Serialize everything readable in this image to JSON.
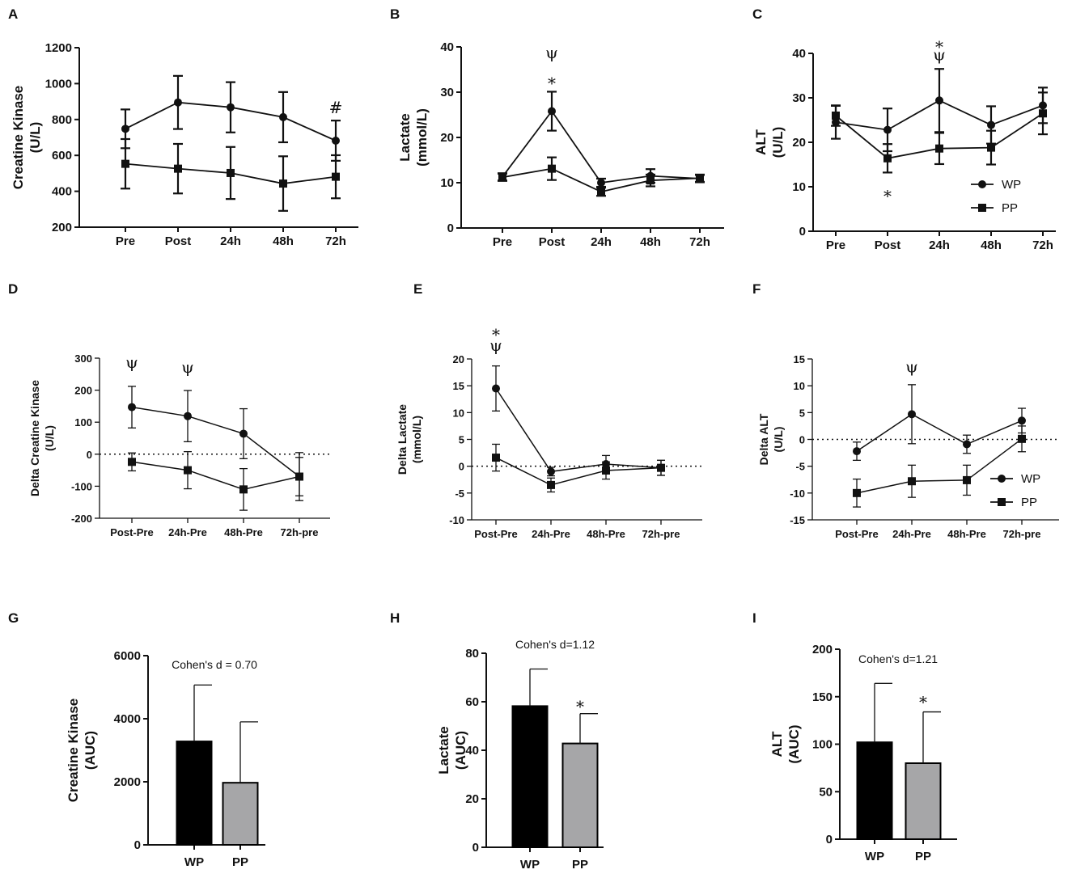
{
  "colors": {
    "wp_bar": "#000000",
    "pp_bar": "#a6a6a8",
    "line": "#111111"
  },
  "chart_data": [
    {
      "id": "A",
      "type": "line",
      "letter": "A",
      "title": "",
      "xlabel": "",
      "ylabel_lines": [
        "Creatine Kinase",
        "(U/L)"
      ],
      "categories": [
        "Pre",
        "Post",
        "24h",
        "48h",
        "72h"
      ],
      "ylim": [
        200,
        1200
      ],
      "yticks": [
        200,
        400,
        600,
        800,
        1000,
        1200
      ],
      "series": [
        {
          "name": "WP",
          "marker": "circle",
          "values": [
            748,
            895,
            868,
            813,
            682
          ],
          "errors": [
            108,
            148,
            140,
            140,
            112
          ]
        },
        {
          "name": "PP",
          "marker": "square",
          "values": [
            553,
            526,
            502,
            443,
            481
          ],
          "errors": [
            138,
            138,
            145,
            152,
            120
          ]
        }
      ],
      "annotations": [
        {
          "text": "#",
          "category": "72h",
          "y": 835
        }
      ]
    },
    {
      "id": "B",
      "type": "line",
      "letter": "B",
      "title": "",
      "xlabel": "",
      "ylabel_lines": [
        "Lactate",
        "(mmol/L)"
      ],
      "categories": [
        "Pre",
        "Post",
        "24h",
        "48h",
        "72h"
      ],
      "ylim": [
        0,
        40
      ],
      "yticks": [
        0,
        10,
        20,
        30,
        40
      ],
      "series": [
        {
          "name": "WP",
          "marker": "circle",
          "values": [
            11.3,
            25.8,
            10.0,
            11.5,
            10.9
          ],
          "errors": [
            0.8,
            4.3,
            0.9,
            1.5,
            0.8
          ]
        },
        {
          "name": "PP",
          "marker": "square",
          "values": [
            11.2,
            13.1,
            8.0,
            10.5,
            11.0
          ],
          "errors": [
            0.8,
            2.5,
            0.9,
            1.3,
            0.8
          ]
        }
      ],
      "annotations": [
        {
          "text": "ψ",
          "category": "Post",
          "y": 37.5
        },
        {
          "text": "*",
          "category": "Post",
          "y": 32.5
        }
      ]
    },
    {
      "id": "C",
      "type": "line",
      "letter": "C",
      "title": "",
      "xlabel": "",
      "ylabel_lines": [
        "ALT",
        "(U/L)"
      ],
      "categories": [
        "Pre",
        "Post",
        "24h",
        "48h",
        "72h"
      ],
      "ylim": [
        0,
        40
      ],
      "yticks": [
        0,
        10,
        20,
        30,
        40
      ],
      "legend": {
        "position": "bottom-right",
        "entries": [
          "WP",
          "PP"
        ]
      },
      "series": [
        {
          "name": "WP",
          "marker": "circle",
          "values": [
            24.5,
            22.8,
            29.4,
            23.9,
            28.3
          ],
          "errors": [
            3.7,
            4.8,
            7.1,
            4.2,
            4.0
          ]
        },
        {
          "name": "PP",
          "marker": "square",
          "values": [
            26.0,
            16.4,
            18.6,
            18.8,
            26.5
          ],
          "errors": [
            2.3,
            3.2,
            3.5,
            3.8,
            4.7
          ]
        }
      ],
      "annotations": [
        {
          "text": "*",
          "category": "24h",
          "y": 42
        },
        {
          "text": "ψ",
          "category": "24h",
          "y": 38.5
        },
        {
          "text": "*",
          "category": "Post",
          "y": 8.5
        }
      ]
    },
    {
      "id": "D",
      "type": "line",
      "letter": "D",
      "title": "",
      "xlabel": "",
      "ylabel_lines": [
        "Delta Creatine Kinase",
        "(U/L)"
      ],
      "categories": [
        "Post-Pre",
        "24h-Pre",
        "48h-Pre",
        "72h-pre"
      ],
      "ylim": [
        -200,
        300
      ],
      "yticks": [
        -200,
        -100,
        0,
        100,
        200,
        300
      ],
      "zero_line": true,
      "series": [
        {
          "name": "WP",
          "marker": "circle",
          "values": [
            147,
            119,
            64,
            -70
          ],
          "errors": [
            65,
            80,
            78,
            75
          ]
        },
        {
          "name": "PP",
          "marker": "square",
          "values": [
            -24,
            -50,
            -110,
            -70
          ],
          "errors": [
            28,
            58,
            65,
            60
          ]
        }
      ],
      "annotations": [
        {
          "text": "ψ",
          "category": "Post-Pre",
          "y": 270
        },
        {
          "text": "ψ",
          "category": "24h-Pre",
          "y": 255
        }
      ]
    },
    {
      "id": "E",
      "type": "line",
      "letter": "E",
      "title": "",
      "xlabel": "",
      "ylabel_lines": [
        "Delta Lactate",
        "(mmol/L)"
      ],
      "categories": [
        "Post-Pre",
        "24h-Pre",
        "48h-Pre",
        "72h-pre"
      ],
      "ylim": [
        -10,
        20
      ],
      "yticks": [
        -10,
        -5,
        0,
        5,
        10,
        15,
        20
      ],
      "zero_line": true,
      "series": [
        {
          "name": "WP",
          "marker": "circle",
          "values": [
            14.5,
            -1.0,
            0.4,
            -0.3
          ],
          "errors": [
            4.2,
            0.8,
            1.6,
            1.4
          ]
        },
        {
          "name": "PP",
          "marker": "square",
          "values": [
            1.6,
            -3.5,
            -0.8,
            -0.3
          ],
          "errors": [
            2.5,
            1.3,
            1.6,
            1.4
          ]
        }
      ],
      "annotations": [
        {
          "text": "*",
          "category": "Post-Pre",
          "y": 25
        },
        {
          "text": "ψ",
          "category": "Post-Pre",
          "y": 21.5
        }
      ]
    },
    {
      "id": "F",
      "type": "line",
      "letter": "F",
      "title": "",
      "xlabel": "",
      "ylabel_lines": [
        "Delta ALT",
        "(U/L)"
      ],
      "categories": [
        "Post-Pre",
        "24h-Pre",
        "48h-Pre",
        "72h-pre"
      ],
      "ylim": [
        -15,
        15
      ],
      "yticks": [
        -15,
        -10,
        -5,
        0,
        5,
        10,
        15
      ],
      "zero_line": true,
      "legend": {
        "position": "bottom-right",
        "entries": [
          "WP",
          "PP"
        ]
      },
      "series": [
        {
          "name": "WP",
          "marker": "circle",
          "values": [
            -2.2,
            4.7,
            -0.9,
            3.5
          ],
          "errors": [
            1.7,
            5.5,
            1.7,
            2.3
          ]
        },
        {
          "name": "PP",
          "marker": "square",
          "values": [
            -10.0,
            -7.8,
            -7.6,
            0.1
          ],
          "errors": [
            2.6,
            3.0,
            2.8,
            2.4
          ]
        }
      ],
      "annotations": [
        {
          "text": "ψ",
          "category": "24h-Pre",
          "y": 12.5
        }
      ]
    },
    {
      "id": "G",
      "type": "bar",
      "letter": "G",
      "title": "Cohen's d = 0.70",
      "xlabel": "",
      "ylabel_lines": [
        "Creatine Kinase",
        "(AUC)"
      ],
      "categories": [
        "WP",
        "PP"
      ],
      "ylim": [
        0,
        6000
      ],
      "yticks": [
        0,
        2000,
        4000,
        6000
      ],
      "values": [
        3280,
        1970
      ],
      "errors": [
        1790,
        1930
      ],
      "annotations": []
    },
    {
      "id": "H",
      "type": "bar",
      "letter": "H",
      "title": "Cohen's d=1.12",
      "xlabel": "",
      "ylabel_lines": [
        "Lactate",
        "(AUC)"
      ],
      "categories": [
        "WP",
        "PP"
      ],
      "ylim": [
        0,
        80
      ],
      "yticks": [
        0,
        20,
        40,
        60,
        80
      ],
      "values": [
        58.2,
        42.8
      ],
      "errors": [
        15.3,
        12.3
      ],
      "annotations": [
        {
          "text": "*",
          "category": "PP",
          "y": 59
        }
      ]
    },
    {
      "id": "I",
      "type": "bar",
      "letter": "I",
      "title": "Cohen's d=1.21",
      "xlabel": "",
      "ylabel_lines": [
        "ALT",
        "(AUC)"
      ],
      "categories": [
        "WP",
        "PP"
      ],
      "ylim": [
        0,
        200
      ],
      "yticks": [
        0,
        50,
        100,
        150,
        200
      ],
      "values": [
        102,
        80
      ],
      "errors": [
        62,
        54
      ],
      "annotations": [
        {
          "text": "*",
          "category": "PP",
          "y": 147
        }
      ]
    }
  ]
}
